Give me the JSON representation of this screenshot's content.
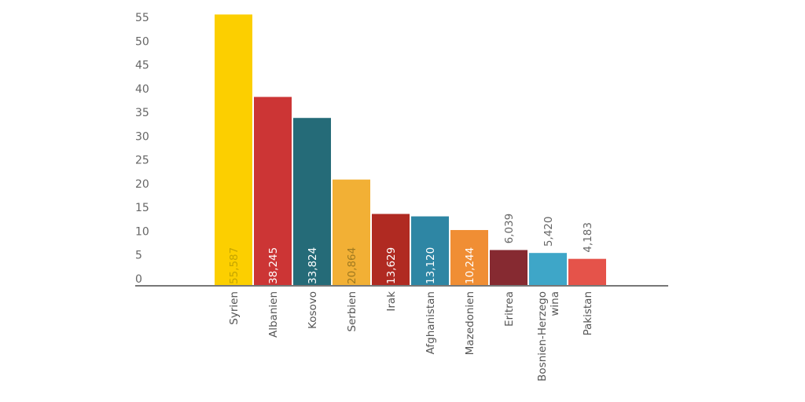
{
  "chart_data": {
    "type": "bar",
    "categories": [
      "Syrien",
      "Albanien",
      "Kosovo",
      "Serbien",
      "Irak",
      "Afghanistan",
      "Mazedonien",
      "Eritrea",
      "Bosnien-Herzegowina",
      "Pakistan"
    ],
    "category_lines": [
      [
        "Syrien"
      ],
      [
        "Albanien"
      ],
      [
        "Kosovo"
      ],
      [
        "Serbien"
      ],
      [
        "Irak"
      ],
      [
        "Afghanistan"
      ],
      [
        "Mazedonien"
      ],
      [
        "Eritrea"
      ],
      [
        "Bosnien-Herzego",
        "wina"
      ],
      [
        "Pakistan"
      ]
    ],
    "values": [
      55.587,
      38.245,
      33.824,
      20.864,
      13.629,
      13.12,
      10.244,
      6.039,
      5.42,
      4.183
    ],
    "value_labels": [
      "55,587",
      "38,245",
      "33,824",
      "20,864",
      "13,629",
      "13,120",
      "10,244",
      "6,039",
      "5,420",
      "4,183"
    ],
    "colors": [
      "#FCCF00",
      "#CC3535",
      "#256B78",
      "#F2B035",
      "#B02A22",
      "#2E86A4",
      "#F08E34",
      "#862A31",
      "#3EA6C8",
      "#E5534A"
    ],
    "value_label_colors": [
      "#C4A400",
      "#FFFFFF",
      "#FFFFFF",
      "#A07A20",
      "#FFFFFF",
      "#FFFFFF",
      "#FFFFFF",
      "#666666",
      "#666666",
      "#666666"
    ],
    "yticks": [
      "55",
      "50",
      "45",
      "40",
      "35",
      "30",
      "25",
      "20",
      "15",
      "10",
      "5",
      "0"
    ],
    "ylim": [
      0,
      55
    ],
    "title": "",
    "xlabel": "",
    "ylabel": "",
    "grid": false,
    "legend": "none"
  }
}
